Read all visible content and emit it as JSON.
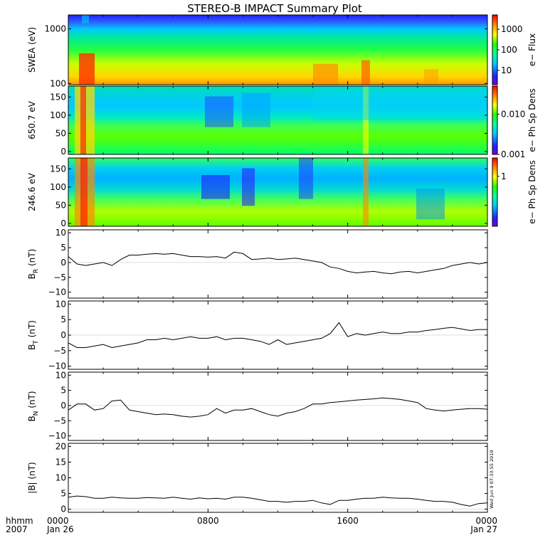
{
  "title": "STEREO-B IMPACT Summary Plot",
  "timestamp": "Wed Jun 9 07:33:55 2010",
  "time_axis": {
    "corner_labels": [
      "hhmm",
      "2007"
    ],
    "ticks": [
      {
        "hour": 0,
        "time": "0000",
        "date": "Jan 26"
      },
      {
        "hour": 8,
        "time": "0800",
        "date": ""
      },
      {
        "hour": 16,
        "time": "1600",
        "date": ""
      },
      {
        "hour": 24,
        "time": "0000",
        "date": "Jan 27"
      }
    ]
  },
  "chart_data": [
    {
      "type": "heatmap",
      "name": "swea",
      "ylabel": "SWEA (eV)",
      "ylog": true,
      "ylim": [
        95,
        1800
      ],
      "yticks": [
        {
          "v": 100,
          "label": "100"
        },
        {
          "v": 1000,
          "label": "1000"
        }
      ],
      "colorbar": {
        "label": "e− Flux",
        "log": true,
        "range": [
          2,
          5000
        ],
        "ticks": [
          {
            "v": 10,
            "label": "10"
          },
          {
            "v": 100,
            "label": "100"
          },
          {
            "v": 1000,
            "label": "1000"
          }
        ]
      }
    },
    {
      "type": "heatmap",
      "name": "pad650",
      "ylabel": "650.7 eV",
      "ylim": [
        -8,
        180
      ],
      "yticks": [
        {
          "v": 0,
          "label": "0"
        },
        {
          "v": 50,
          "label": "50"
        },
        {
          "v": 100,
          "label": "100"
        },
        {
          "v": 150,
          "label": "150"
        }
      ],
      "colorbar": {
        "label": "e− Ph Sp Dens",
        "log": true,
        "range": [
          0.001,
          0.05
        ],
        "ticks": [
          {
            "v": 0.001,
            "label": "0.001"
          },
          {
            "v": 0.01,
            "label": "0.010"
          }
        ]
      }
    },
    {
      "type": "heatmap",
      "name": "pad246",
      "ylabel": "246.6 eV",
      "ylim": [
        -8,
        180
      ],
      "yticks": [
        {
          "v": 0,
          "label": "0"
        },
        {
          "v": 50,
          "label": "50"
        },
        {
          "v": 100,
          "label": "100"
        },
        {
          "v": 150,
          "label": "150"
        }
      ],
      "colorbar": {
        "label": "e− Ph Sp Dens",
        "log": true,
        "range": [
          0.05,
          3
        ],
        "ticks": [
          {
            "v": 1,
            "label": "1"
          }
        ]
      }
    },
    {
      "type": "line",
      "name": "br",
      "ylabel": "B_R (nT)",
      "ylabel_parts": [
        "B",
        "R",
        " (nT)"
      ],
      "ylim": [
        -12,
        11
      ],
      "yticks": [
        {
          "v": -10,
          "label": "−10"
        },
        {
          "v": -5,
          "label": "−5"
        },
        {
          "v": 0,
          "label": "0"
        },
        {
          "v": 5,
          "label": "5"
        },
        {
          "v": 10,
          "label": "10"
        }
      ],
      "x": [
        0,
        0.5,
        1,
        1.5,
        2,
        2.5,
        3,
        3.5,
        4,
        4.5,
        5,
        5.5,
        6,
        6.5,
        7,
        7.5,
        8,
        8.5,
        9,
        9.5,
        10,
        10.5,
        11,
        11.5,
        12,
        12.5,
        13,
        13.5,
        14,
        14.5,
        15,
        15.5,
        16,
        16.5,
        17,
        17.5,
        18,
        18.5,
        19,
        19.5,
        20,
        20.5,
        21,
        21.5,
        22,
        22.5,
        23,
        23.5,
        24
      ],
      "y": [
        2,
        -0.5,
        -1,
        -0.5,
        0,
        -1,
        1,
        2.5,
        2.5,
        2.8,
        3,
        2.8,
        3,
        2.5,
        2,
        2,
        1.8,
        2,
        1.5,
        3.5,
        3,
        1,
        1.2,
        1.5,
        1,
        1.2,
        1.5,
        1,
        0.5,
        0,
        -1.5,
        -2,
        -3,
        -3.5,
        -3.2,
        -3,
        -3.5,
        -3.8,
        -3.2,
        -3,
        -3.5,
        -3,
        -2.5,
        -2,
        -1,
        -0.5,
        0,
        -0.5,
        0
      ]
    },
    {
      "type": "line",
      "name": "bt",
      "ylabel": "B_T (nT)",
      "ylabel_parts": [
        "B",
        "T",
        " (nT)"
      ],
      "ylim": [
        -11,
        11
      ],
      "yticks": [
        {
          "v": -10,
          "label": "−10"
        },
        {
          "v": -5,
          "label": "−5"
        },
        {
          "v": 0,
          "label": "0"
        },
        {
          "v": 5,
          "label": "5"
        },
        {
          "v": 10,
          "label": "10"
        }
      ],
      "x": [
        0,
        0.5,
        1,
        1.5,
        2,
        2.5,
        3,
        3.5,
        4,
        4.5,
        5,
        5.5,
        6,
        6.5,
        7,
        7.5,
        8,
        8.5,
        9,
        9.5,
        10,
        10.5,
        11,
        11.5,
        12,
        12.5,
        13,
        13.5,
        14,
        14.5,
        15,
        15.5,
        16,
        16.5,
        17,
        17.5,
        18,
        18.5,
        19,
        19.5,
        20,
        20.5,
        21,
        21.5,
        22,
        22.5,
        23,
        23.5,
        24
      ],
      "y": [
        -2.5,
        -4,
        -4,
        -3.5,
        -3,
        -4,
        -3.5,
        -3,
        -2.5,
        -1.5,
        -1.5,
        -1,
        -1.5,
        -1,
        -0.5,
        -1,
        -1,
        -0.5,
        -1.5,
        -1,
        -1,
        -1.5,
        -2,
        -3,
        -1.5,
        -3,
        -2.5,
        -2,
        -1.5,
        -1,
        0.5,
        4,
        -0.5,
        0.5,
        0,
        0.5,
        1,
        0.5,
        0.5,
        1,
        1,
        1.5,
        1.8,
        2.2,
        2.5,
        2,
        1.5,
        1.8,
        1.8
      ]
    },
    {
      "type": "line",
      "name": "bn",
      "ylabel": "B_N (nT)",
      "ylabel_parts": [
        "B",
        "N",
        " (nT)"
      ],
      "ylim": [
        -11.5,
        11
      ],
      "yticks": [
        {
          "v": -10,
          "label": "−10"
        },
        {
          "v": -5,
          "label": "−5"
        },
        {
          "v": 0,
          "label": "0"
        },
        {
          "v": 5,
          "label": "5"
        },
        {
          "v": 10,
          "label": "10"
        }
      ],
      "x": [
        0,
        0.5,
        1,
        1.5,
        2,
        2.5,
        3,
        3.5,
        4,
        4.5,
        5,
        5.5,
        6,
        6.5,
        7,
        7.5,
        8,
        8.5,
        9,
        9.5,
        10,
        10.5,
        11,
        11.5,
        12,
        12.5,
        13,
        13.5,
        14,
        14.5,
        15,
        15.5,
        16,
        16.5,
        17,
        17.5,
        18,
        18.5,
        19,
        19.5,
        20,
        20.5,
        21,
        21.5,
        22,
        22.5,
        23,
        23.5,
        24
      ],
      "y": [
        -1.5,
        0.5,
        0.5,
        -1.5,
        -1,
        1.5,
        1.8,
        -1.5,
        -2,
        -2.5,
        -3,
        -2.8,
        -3,
        -3.5,
        -3.8,
        -3.5,
        -3,
        -1,
        -2.5,
        -1.5,
        -1.5,
        -1,
        -2,
        -3,
        -3.5,
        -2.5,
        -2,
        -1,
        0.5,
        0.5,
        1,
        1.2,
        1.5,
        1.8,
        2,
        2.2,
        2.5,
        2.3,
        2,
        1.5,
        1,
        -1,
        -1.5,
        -1.8,
        -1.5,
        -1.2,
        -1,
        -1,
        -1.2
      ]
    },
    {
      "type": "line",
      "name": "bmag",
      "ylabel": "|B| (nT)",
      "ylabel_parts": [
        "|B|",
        "",
        " (nT)"
      ],
      "ylim": [
        -1,
        21
      ],
      "yticks": [
        {
          "v": 0,
          "label": "0"
        },
        {
          "v": 5,
          "label": "5"
        },
        {
          "v": 10,
          "label": "10"
        },
        {
          "v": 15,
          "label": "15"
        },
        {
          "v": 20,
          "label": "20"
        }
      ],
      "x": [
        0,
        0.5,
        1,
        1.5,
        2,
        2.5,
        3,
        3.5,
        4,
        4.5,
        5,
        5.5,
        6,
        6.5,
        7,
        7.5,
        8,
        8.5,
        9,
        9.5,
        10,
        10.5,
        11,
        11.5,
        12,
        12.5,
        13,
        13.5,
        14,
        14.5,
        15,
        15.5,
        16,
        16.5,
        17,
        17.5,
        18,
        18.5,
        19,
        19.5,
        20,
        20.5,
        21,
        21.5,
        22,
        22.5,
        23,
        23.5,
        24
      ],
      "y": [
        3.8,
        4.2,
        4,
        3.5,
        3.5,
        3.8,
        3.6,
        3.5,
        3.5,
        3.7,
        3.6,
        3.5,
        3.8,
        3.5,
        3.2,
        3.6,
        3.3,
        3.5,
        3.2,
        3.8,
        3.8,
        3.5,
        3,
        2.5,
        2.5,
        2.2,
        2.5,
        2.5,
        2.8,
        2,
        1.5,
        2.8,
        2.8,
        3.2,
        3.5,
        3.5,
        3.8,
        3.6,
        3.5,
        3.5,
        3.2,
        2.8,
        2.5,
        2.5,
        2.2,
        1.5,
        1,
        1.8,
        2
      ]
    }
  ]
}
